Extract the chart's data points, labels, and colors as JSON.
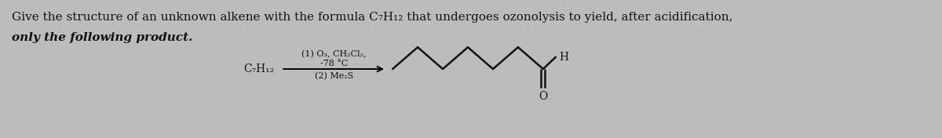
{
  "background_color": "#bcbcbc",
  "text_line1": "Give the structure of an unknown alkene with the formula C₇H₁₂ that undergoes ozonolysis to yield, after acidification,",
  "text_line2": "only the following product.",
  "text_fontsize": 11.0,
  "reagent_label": "C₇H₁₂",
  "reagent_text1": "(1) O₃, CH₂Cl₂,",
  "reagent_text2": "-78 °C",
  "reagent_text3": "(2) Me₂S",
  "bond_color": "#111111",
  "bond_lw": 1.8,
  "text_color": "#111111"
}
